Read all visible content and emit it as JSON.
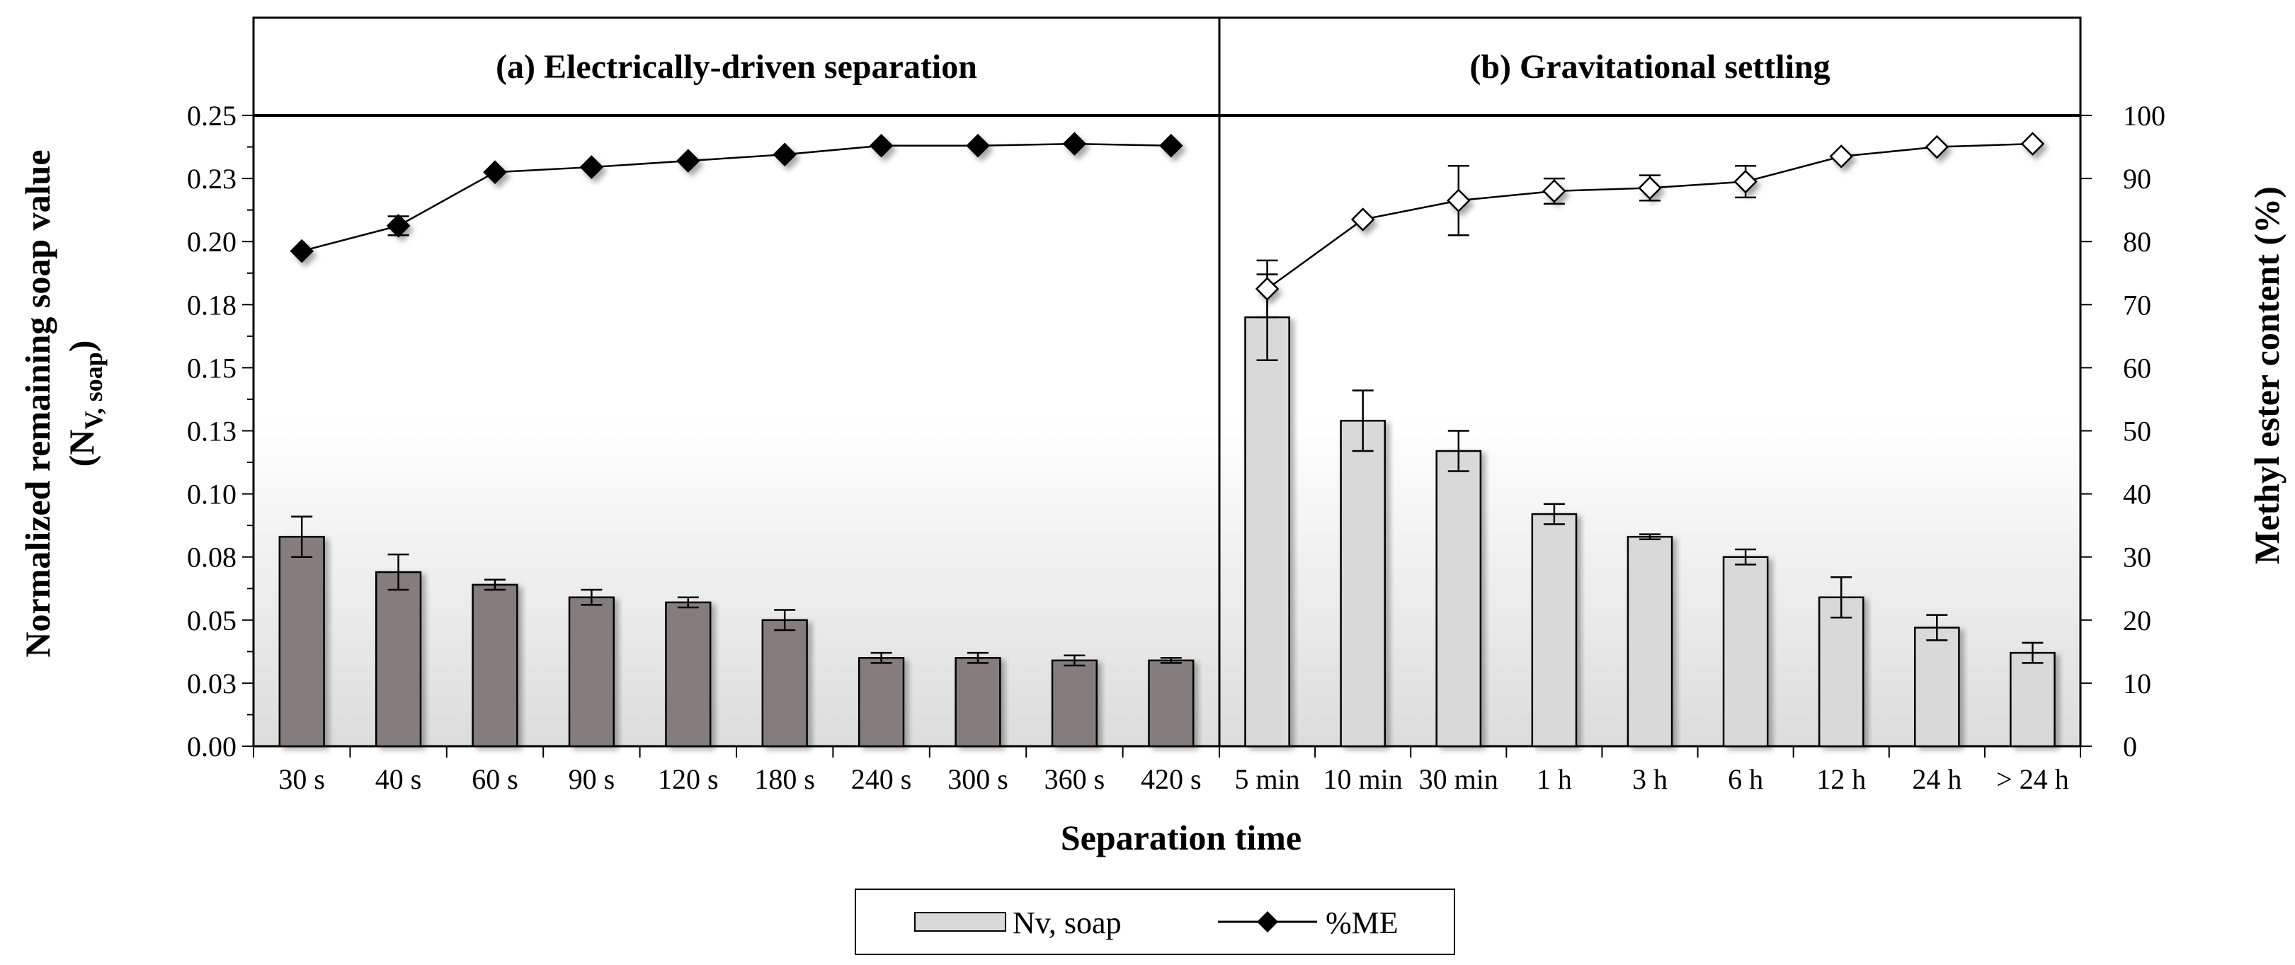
{
  "chart_data": {
    "type": "bar+line",
    "title": "",
    "xlabel": "Separation time",
    "ylabel_left": "Normalized remaining  soap value",
    "ylabel_left_sub": "(N",
    "ylabel_left_subscript": "V, soap",
    "ylabel_left_close": ")",
    "ylabel_right": "Methyl ester content (%)",
    "ylim_left": [
      0,
      0.25
    ],
    "ylim_right": [
      0,
      100
    ],
    "left_ticks": [
      "0.00",
      "0.03",
      "0.05",
      "0.08",
      "0.10",
      "0.13",
      "0.15",
      "0.18",
      "0.20",
      "0.23",
      "0.25"
    ],
    "right_ticks": [
      "0",
      "10",
      "20",
      "30",
      "40",
      "50",
      "60",
      "70",
      "80",
      "90",
      "100"
    ],
    "panels": [
      {
        "title": "(a) Electrically-driven  separation",
        "categories": [
          "30 s",
          "40 s",
          "60 s",
          "90 s",
          "120 s",
          "180 s",
          "240 s",
          "300 s",
          "360 s",
          "420 s"
        ],
        "bar_values": [
          0.083,
          0.069,
          0.064,
          0.059,
          0.057,
          0.05,
          0.035,
          0.035,
          0.034,
          0.034
        ],
        "bar_errors": [
          0.008,
          0.007,
          0.002,
          0.003,
          0.002,
          0.004,
          0.002,
          0.002,
          0.002,
          0.001
        ],
        "line_values": [
          78.5,
          82.5,
          91.0,
          91.8,
          92.8,
          93.8,
          95.2,
          95.2,
          95.5,
          95.2
        ],
        "line_errors": [
          0,
          1.5,
          0,
          0,
          0,
          0,
          0,
          0,
          0,
          0
        ],
        "bar_color": "#857d7d",
        "marker": "filled-diamond"
      },
      {
        "title": "(b) Gravitational  settling",
        "categories": [
          "5 min",
          "10 min",
          "30 min",
          "1 h",
          "3 h",
          "6 h",
          "12 h",
          "24 h",
          "> 24 h"
        ],
        "bar_values": [
          0.17,
          0.129,
          0.117,
          0.092,
          0.083,
          0.075,
          0.059,
          0.047,
          0.037
        ],
        "bar_errors": [
          0.017,
          0.012,
          0.008,
          0.004,
          0.001,
          0.003,
          0.008,
          0.005,
          0.004
        ],
        "line_values": [
          72.5,
          83.5,
          86.5,
          88.0,
          88.5,
          89.5,
          93.5,
          95.0,
          95.5
        ],
        "line_errors": [
          4.5,
          0,
          5.5,
          2.0,
          2.0,
          2.5,
          0,
          0,
          0
        ],
        "bar_color": "#d9d9d9",
        "marker": "open-diamond"
      }
    ],
    "legend": [
      {
        "label": "Nv, soap",
        "kind": "bar"
      },
      {
        "label": "%ME",
        "kind": "line"
      }
    ],
    "legend_position": "bottom-center",
    "grid": false
  }
}
